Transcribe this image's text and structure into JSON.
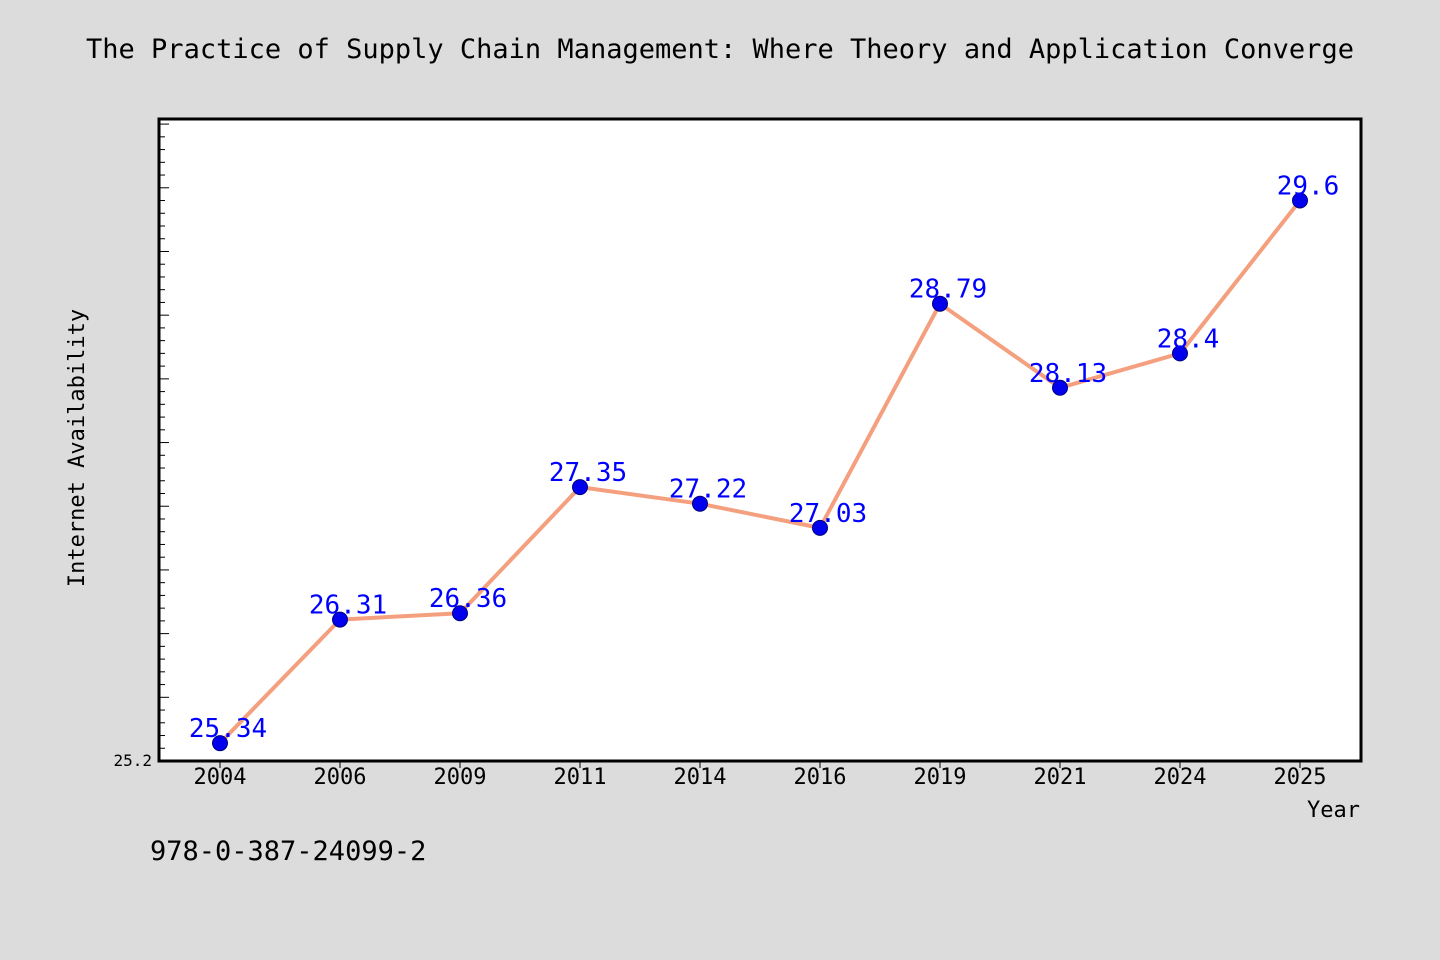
{
  "chart_data": {
    "type": "line",
    "title": "The Practice of Supply Chain Management: Where Theory and Application Converge",
    "xlabel": "Year",
    "ylabel": "Internet Availability",
    "categories": [
      "2004",
      "2006",
      "2009",
      "2011",
      "2014",
      "2016",
      "2019",
      "2021",
      "2024",
      "2025"
    ],
    "values": [
      25.34,
      26.31,
      26.36,
      27.35,
      27.22,
      27.03,
      28.79,
      28.13,
      28.4,
      29.6
    ],
    "data_labels": [
      "25.34",
      "26.31",
      "26.36",
      "27.35",
      "27.22",
      "27.03",
      "28.79",
      "28.13",
      "28.4",
      "29.6"
    ],
    "ylim": [
      25.2,
      30.24
    ],
    "y_tick_labels": [
      "25.2"
    ],
    "grid": false,
    "legend": "none",
    "colors": {
      "line": "#f4a07e",
      "marker": "#0000ee",
      "label": "#0000ff",
      "plot_background": "#ffffff",
      "page_background": "#dcdcdc"
    }
  },
  "footer": {
    "code": "978-0-387-24099-2"
  }
}
